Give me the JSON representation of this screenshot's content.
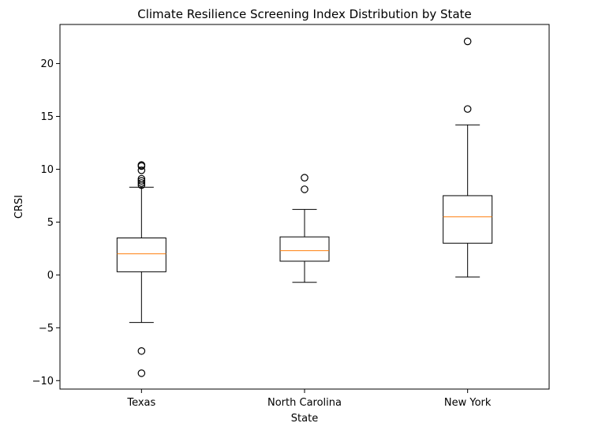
{
  "chart_data": {
    "type": "box",
    "title": "Climate Resilience Screening Index Distribution by State",
    "xlabel": "State",
    "ylabel": "CRSI",
    "ylim": [
      -10.8,
      23.7
    ],
    "yticks": [
      -10,
      -5,
      0,
      5,
      10,
      15,
      20
    ],
    "ytick_labels": [
      "−10",
      "−5",
      "0",
      "5",
      "10",
      "15",
      "20"
    ],
    "grid": false,
    "categories": [
      "Texas",
      "North Carolina",
      "New York"
    ],
    "boxes": [
      {
        "category": "Texas",
        "whisker_low": -4.5,
        "q1": 0.3,
        "median": 2.0,
        "q3": 3.5,
        "whisker_high": 8.3,
        "outliers": [
          8.5,
          8.7,
          8.9,
          9.1,
          9.9,
          10.3,
          10.4,
          -7.2,
          -9.3
        ]
      },
      {
        "category": "North Carolina",
        "whisker_low": -0.7,
        "q1": 1.3,
        "median": 2.3,
        "q3": 3.6,
        "whisker_high": 6.2,
        "outliers": [
          8.1,
          9.2
        ]
      },
      {
        "category": "New York",
        "whisker_low": -0.2,
        "q1": 3.0,
        "median": 5.5,
        "q3": 7.5,
        "whisker_high": 14.2,
        "outliers": [
          15.7,
          22.1
        ]
      }
    ],
    "colors": {
      "box": "#000000",
      "median": "#ff7f0e",
      "outlier_edge": "#000000"
    }
  }
}
